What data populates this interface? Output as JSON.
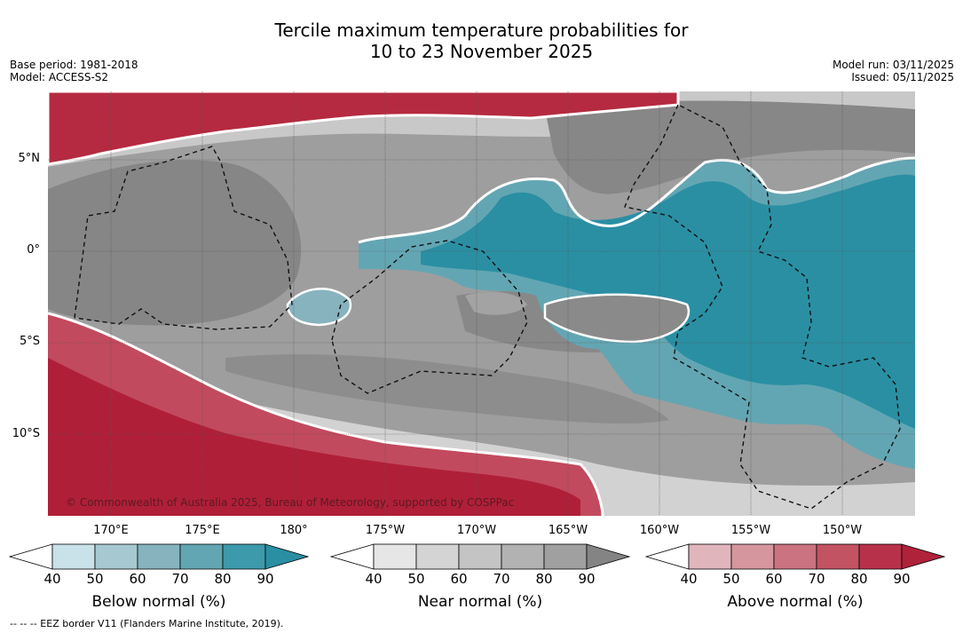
{
  "title": {
    "line1": "Tercile maximum temperature probabilities for",
    "line2": "10 to 23 November 2025"
  },
  "meta": {
    "base_period": "Base period: 1981-2018",
    "model": "Model: ACCESS-S2",
    "model_run": "Model run: 03/11/2025",
    "issued": "Issued: 05/11/2025"
  },
  "map": {
    "latitude_labels": [
      "5°N",
      "0°",
      "5°S",
      "10°S"
    ],
    "longitude_labels": [
      "170°E",
      "175°E",
      "180°",
      "175°W",
      "170°W",
      "165°W",
      "160°W",
      "155°W",
      "150°W"
    ],
    "copyright": "© Commonwealth of Australia 2025, Bureau of Meteorology, supported by COSPPac",
    "colors": {
      "above": "#b8253d",
      "near": "#8a8a8a",
      "below": "#2a8fa3"
    }
  },
  "legends": [
    {
      "name": "Below normal (%)",
      "ticks": [
        "40",
        "50",
        "60",
        "70",
        "80",
        "90"
      ],
      "colors": [
        "#ffffff",
        "#c9e1e8",
        "#a6c9d1",
        "#86b3be",
        "#63a6b3",
        "#3d9aab",
        "#2a8fa3"
      ]
    },
    {
      "name": "Near normal (%)",
      "ticks": [
        "40",
        "50",
        "60",
        "70",
        "80",
        "90"
      ],
      "colors": [
        "#ffffff",
        "#e6e6e6",
        "#d4d4d4",
        "#c4c4c4",
        "#b2b2b2",
        "#a0a0a0",
        "#848484"
      ]
    },
    {
      "name": "Above normal (%)",
      "ticks": [
        "40",
        "50",
        "60",
        "70",
        "80",
        "90"
      ],
      "colors": [
        "#ffffff",
        "#e0b6bc",
        "#d6969e",
        "#cb7380",
        "#c25363",
        "#b8314a",
        "#b0213a"
      ]
    }
  ],
  "footer": "--  --  -- EEZ border V11 (Flanders Marine Institute, 2019)."
}
